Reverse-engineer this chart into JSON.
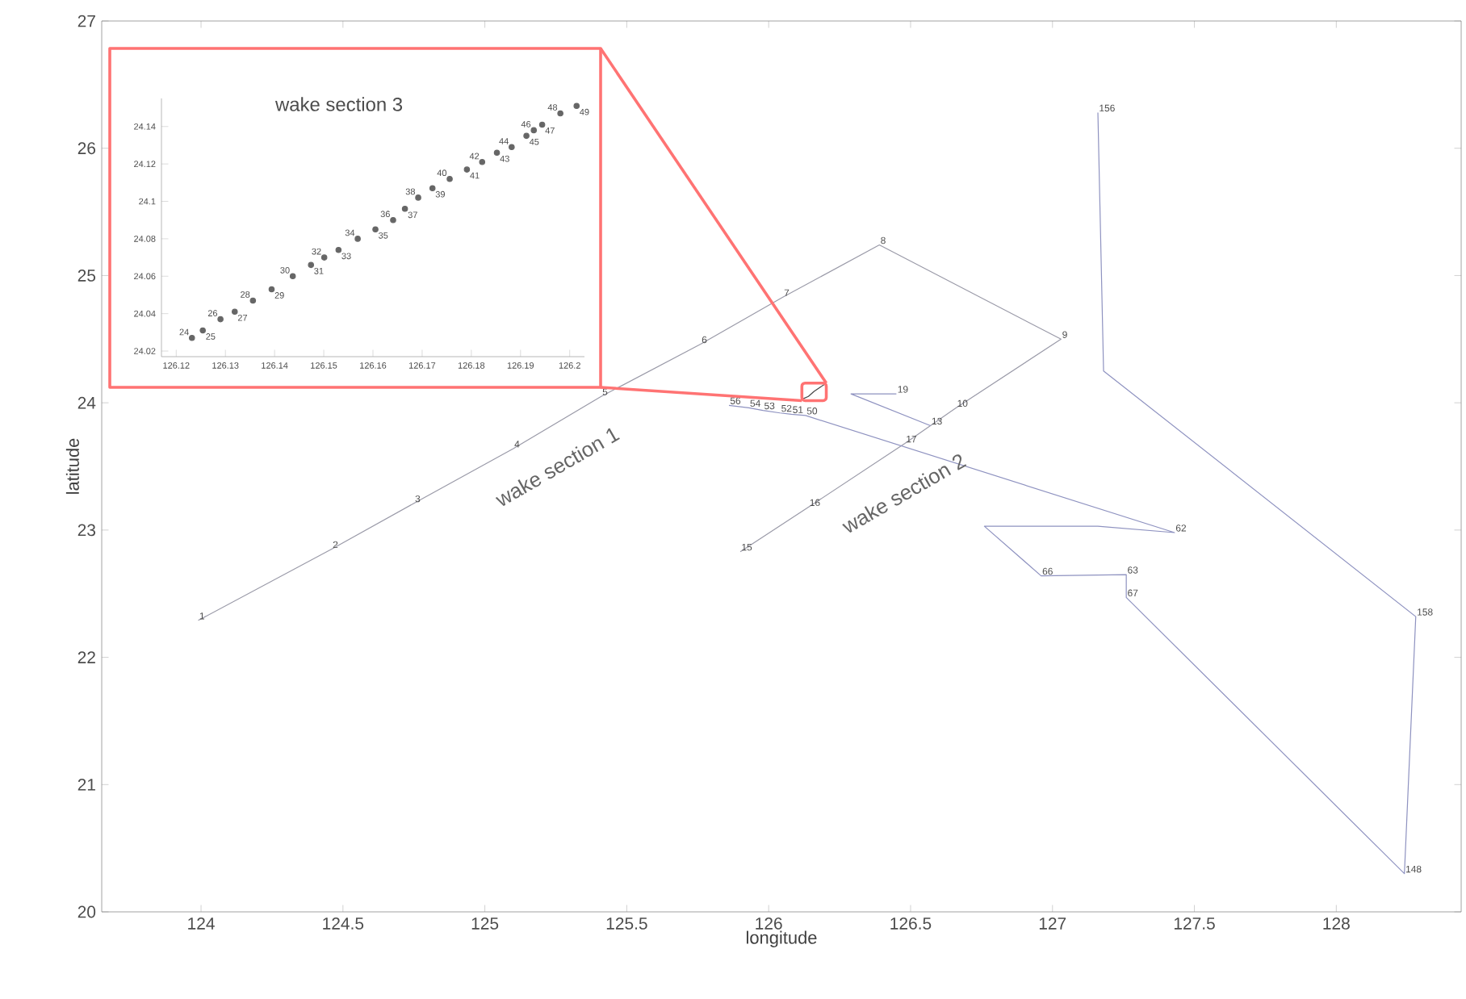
{
  "chart_data": [
    {
      "type": "line",
      "xlabel": "longitude",
      "ylabel": "latitude",
      "xlim": [
        123.65,
        128.44
      ],
      "ylim": [
        20,
        27
      ],
      "xticks": [
        124,
        124.5,
        125,
        125.5,
        126,
        126.5,
        127,
        127.5,
        128
      ],
      "yticks": [
        20,
        21,
        22,
        23,
        24,
        25,
        26,
        27
      ],
      "grid": false,
      "annotations": [
        "wake section 1",
        "wake section 2",
        {
          "text": "1",
          "x": 123.99,
          "y": 22.29
        },
        {
          "text": "2",
          "x": 124.46,
          "y": 22.85
        },
        {
          "text": "3",
          "x": 124.75,
          "y": 23.21
        },
        {
          "text": "4",
          "x": 125.1,
          "y": 23.64
        },
        {
          "text": "5",
          "x": 125.41,
          "y": 24.05
        },
        {
          "text": "6",
          "x": 125.76,
          "y": 24.46
        },
        {
          "text": "7",
          "x": 126.05,
          "y": 24.83
        },
        {
          "text": "8",
          "x": 126.39,
          "y": 25.24
        },
        {
          "text": "9",
          "x": 127.03,
          "y": 24.5
        },
        {
          "text": "10",
          "x": 126.66,
          "y": 23.96
        },
        {
          "text": "13",
          "x": 126.57,
          "y": 23.82
        },
        {
          "text": "17",
          "x": 126.48,
          "y": 23.68
        },
        {
          "text": "16",
          "x": 126.14,
          "y": 23.18
        },
        {
          "text": "15",
          "x": 125.9,
          "y": 22.83
        },
        {
          "text": "19",
          "x": 126.45,
          "y": 24.07
        },
        {
          "text": "56",
          "x": 125.86,
          "y": 23.98
        },
        {
          "text": "54",
          "x": 125.93,
          "y": 23.96
        },
        {
          "text": "53",
          "x": 125.98,
          "y": 23.94
        },
        {
          "text": "52",
          "x": 126.04,
          "y": 23.92
        },
        {
          "text": "51",
          "x": 126.08,
          "y": 23.91
        },
        {
          "text": "50",
          "x": 126.13,
          "y": 23.9
        },
        {
          "text": "62",
          "x": 127.43,
          "y": 22.98
        },
        {
          "text": "66",
          "x": 126.96,
          "y": 22.64
        },
        {
          "text": "63",
          "x": 127.26,
          "y": 22.65
        },
        {
          "text": "67",
          "x": 127.26,
          "y": 22.47
        },
        {
          "text": "148",
          "x": 128.24,
          "y": 20.3
        },
        {
          "text": "158",
          "x": 128.28,
          "y": 22.32
        },
        {
          "text": "156",
          "x": 127.16,
          "y": 26.28
        }
      ],
      "series": [
        {
          "color": "#9a9aa8",
          "x": [
            123.99,
            124.46,
            124.75,
            125.1,
            125.41,
            125.76,
            126.05,
            126.39,
            127.03,
            126.66,
            126.57,
            126.48,
            126.14,
            125.9
          ],
          "values": [
            22.29,
            22.85,
            23.21,
            23.64,
            24.05,
            24.46,
            24.83,
            25.24,
            24.5,
            23.96,
            23.82,
            23.68,
            23.18,
            22.83
          ]
        },
        {
          "color": "#8e92c0",
          "x": [
            126.45,
            126.29,
            126.57
          ],
          "values": [
            24.07,
            24.07,
            23.82
          ]
        },
        {
          "color": "#444444",
          "x": [
            126.12,
            126.14,
            126.16,
            126.18,
            126.2
          ],
          "values": [
            24.03,
            24.05,
            24.09,
            24.12,
            24.15
          ]
        },
        {
          "color": "#8e92c0",
          "x": [
            125.86,
            125.93,
            125.98,
            126.04,
            126.08,
            126.13,
            127.43,
            127.16,
            126.76,
            126.96,
            127.26,
            127.26,
            128.24,
            128.28,
            127.18,
            127.16
          ],
          "values": [
            23.98,
            23.96,
            23.94,
            23.92,
            23.91,
            23.9,
            22.98,
            23.03,
            23.03,
            22.64,
            22.65,
            22.47,
            20.3,
            22.32,
            24.25,
            26.28
          ]
        }
      ]
    },
    {
      "type": "scatter",
      "title": "wake section 3",
      "xlim": [
        126.117,
        126.203
      ],
      "ylim": [
        24.017,
        24.155
      ],
      "xticks": [
        126.12,
        126.13,
        126.14,
        126.15,
        126.16,
        126.17,
        126.18,
        126.19,
        126.2
      ],
      "yticks": [
        24.02,
        24.04,
        24.06,
        24.08,
        24.1,
        24.12,
        24.14
      ],
      "annotations": [
        {
          "text": "24",
          "x": 126.1232,
          "y": 24.027
        },
        {
          "text": "25",
          "x": 126.1254,
          "y": 24.031
        },
        {
          "text": "26",
          "x": 126.129,
          "y": 24.037
        },
        {
          "text": "27",
          "x": 126.1319,
          "y": 24.041
        },
        {
          "text": "28",
          "x": 126.1356,
          "y": 24.047
        },
        {
          "text": "29",
          "x": 126.1394,
          "y": 24.053
        },
        {
          "text": "30",
          "x": 126.1437,
          "y": 24.06
        },
        {
          "text": "31",
          "x": 126.1474,
          "y": 24.066
        },
        {
          "text": "32",
          "x": 126.1501,
          "y": 24.07
        },
        {
          "text": "33",
          "x": 126.153,
          "y": 24.074
        },
        {
          "text": "34",
          "x": 126.1569,
          "y": 24.08
        },
        {
          "text": "35",
          "x": 126.1605,
          "y": 24.085
        },
        {
          "text": "36",
          "x": 126.1641,
          "y": 24.09
        },
        {
          "text": "37",
          "x": 126.1665,
          "y": 24.096
        },
        {
          "text": "38",
          "x": 126.1692,
          "y": 24.102
        },
        {
          "text": "39",
          "x": 126.1721,
          "y": 24.107
        },
        {
          "text": "40",
          "x": 126.1756,
          "y": 24.112
        },
        {
          "text": "41",
          "x": 126.1791,
          "y": 24.117
        },
        {
          "text": "42",
          "x": 126.1822,
          "y": 24.121
        },
        {
          "text": "43",
          "x": 126.1852,
          "y": 24.126
        },
        {
          "text": "44",
          "x": 126.1882,
          "y": 24.129
        },
        {
          "text": "45",
          "x": 126.1912,
          "y": 24.135
        },
        {
          "text": "46",
          "x": 126.1927,
          "y": 24.138
        },
        {
          "text": "47",
          "x": 126.1944,
          "y": 24.141
        },
        {
          "text": "48",
          "x": 126.1981,
          "y": 24.147
        },
        {
          "text": "49",
          "x": 126.2014,
          "y": 24.151
        }
      ],
      "series": [
        {
          "color": "#666666",
          "x": [
            126.1232,
            126.1254,
            126.129,
            126.1319,
            126.1356,
            126.1394,
            126.1437,
            126.1474,
            126.1501,
            126.153,
            126.1569,
            126.1605,
            126.1641,
            126.1665,
            126.1692,
            126.1721,
            126.1756,
            126.1791,
            126.1822,
            126.1852,
            126.1882,
            126.1912,
            126.1927,
            126.1944,
            126.1981,
            126.2014
          ],
          "values": [
            24.027,
            24.031,
            24.037,
            24.041,
            24.047,
            24.053,
            24.06,
            24.066,
            24.07,
            24.074,
            24.08,
            24.085,
            24.09,
            24.096,
            24.102,
            24.107,
            24.112,
            24.117,
            24.121,
            24.126,
            24.129,
            24.135,
            24.138,
            24.141,
            24.147,
            24.151
          ]
        }
      ]
    }
  ]
}
